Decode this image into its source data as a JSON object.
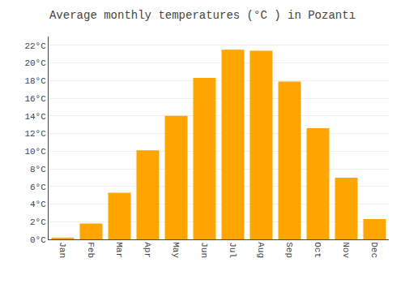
{
  "chart_data": {
    "type": "bar",
    "title": "Average monthly temperatures (°C ) in Pozantı",
    "categories": [
      "Jan",
      "Feb",
      "Mar",
      "Apr",
      "May",
      "Jun",
      "Jul",
      "Aug",
      "Sep",
      "Oct",
      "Nov",
      "Dec"
    ],
    "values": [
      0.2,
      1.8,
      5.3,
      10.1,
      14.0,
      18.3,
      21.5,
      21.4,
      17.9,
      12.6,
      7.0,
      2.3
    ],
    "color": "#FFA500",
    "ylim": [
      0,
      23
    ],
    "yticks": [
      {
        "value": 0,
        "label": "0°C"
      },
      {
        "value": 2,
        "label": "2°C"
      },
      {
        "value": 4,
        "label": "4°C"
      },
      {
        "value": 6,
        "label": "6°C"
      },
      {
        "value": 8,
        "label": "8°C"
      },
      {
        "value": 10,
        "label": "10°C"
      },
      {
        "value": 12,
        "label": "12°C"
      },
      {
        "value": 14,
        "label": "14°C"
      },
      {
        "value": 16,
        "label": "16°C"
      },
      {
        "value": 18,
        "label": "18°C"
      },
      {
        "value": 20,
        "label": "20°C"
      },
      {
        "value": 22,
        "label": "22°C"
      }
    ],
    "grid": true
  }
}
